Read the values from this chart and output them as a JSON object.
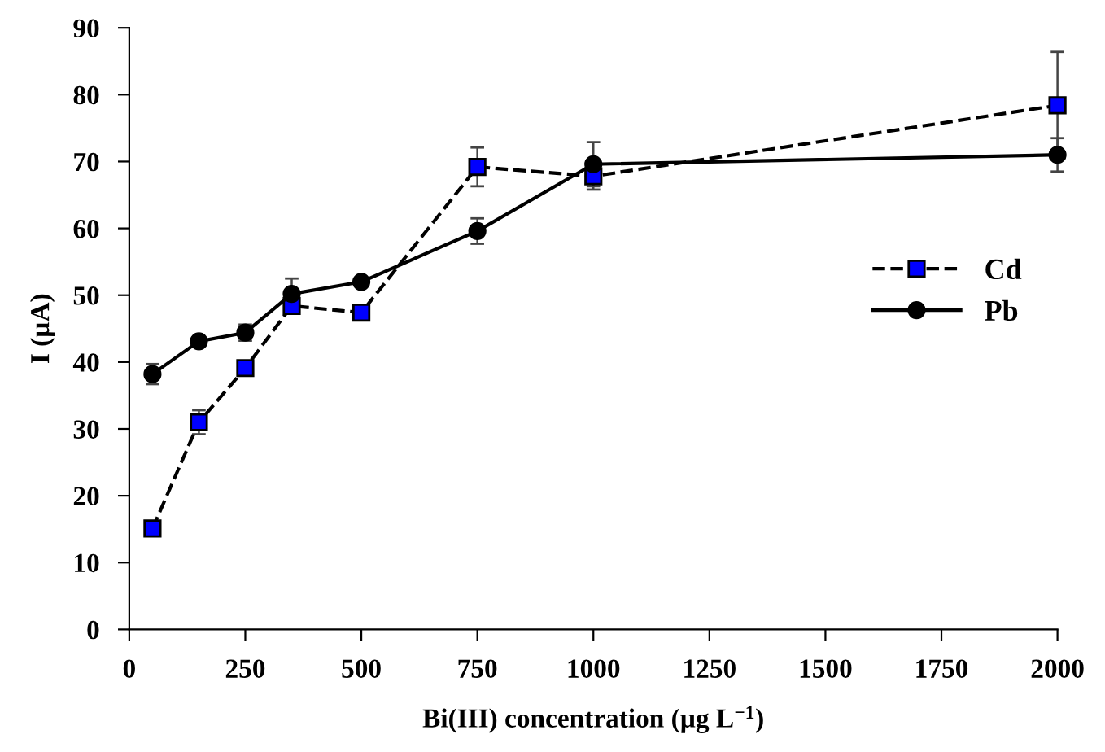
{
  "chart_data": {
    "type": "line",
    "xlabel": "Bi(III) concentration (µg L$^{−1}$)",
    "ylabel": "I (µA)",
    "xlim": [
      0,
      2000
    ],
    "xticks": [
      0,
      250,
      500,
      750,
      1000,
      1250,
      1500,
      1750,
      2000
    ],
    "ylim": [
      0,
      90
    ],
    "yticks": [
      0,
      10,
      20,
      30,
      40,
      50,
      60,
      70,
      80,
      90
    ],
    "grid": false,
    "legend": "right",
    "series": [
      {
        "name": "Cd",
        "color": "#0000ff",
        "marker": "square",
        "line_style": "dashed",
        "x": [
          50,
          150,
          250,
          350,
          500,
          750,
          1000,
          2000
        ],
        "values": [
          15.1,
          31.0,
          39.1,
          48.4,
          47.4,
          69.2,
          67.8,
          78.4
        ],
        "errors": [
          1,
          1.8,
          1,
          1,
          0.8,
          2.9,
          2,
          8
        ]
      },
      {
        "name": "Pb",
        "color": "#000000",
        "marker": "circle",
        "line_style": "solid",
        "x": [
          50,
          150,
          250,
          350,
          500,
          750,
          1000,
          2000
        ],
        "values": [
          38.2,
          43.1,
          44.4,
          50.2,
          52.0,
          59.6,
          69.6,
          71.0
        ],
        "errors": [
          1.5,
          0.6,
          1.2,
          2.3,
          0.6,
          1.9,
          3.3,
          2.5
        ]
      }
    ]
  }
}
